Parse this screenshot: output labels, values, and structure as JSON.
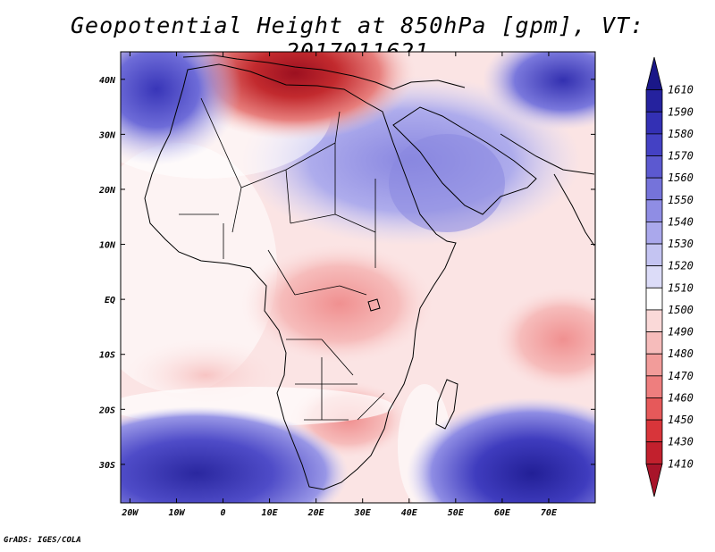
{
  "title": "Geopotential Height at 850hPa [gpm], VT: 2017011621",
  "credit": "GrADS: IGES/COLA",
  "map": {
    "variable": "Geopotential Height",
    "level": "850hPa",
    "units": "gpm",
    "valid_time": "2017011621",
    "lon_range": [
      -22,
      80
    ],
    "lat_range": [
      -37,
      45
    ],
    "lon_tick_labels": [
      "20W",
      "10W",
      "0",
      "10E",
      "20E",
      "30E",
      "40E",
      "50E",
      "60E",
      "70E"
    ],
    "lon_tick_values": [
      -20,
      -10,
      0,
      10,
      20,
      30,
      40,
      50,
      60,
      70
    ],
    "lat_tick_labels": [
      "40N",
      "30N",
      "20N",
      "10N",
      "EQ",
      "10S",
      "20S",
      "30S"
    ],
    "lat_tick_values": [
      40,
      30,
      20,
      10,
      0,
      -10,
      -20,
      -30
    ]
  },
  "colorbar": {
    "labels": [
      "1410",
      "1430",
      "1450",
      "1460",
      "1470",
      "1480",
      "1490",
      "1500",
      "1510",
      "1520",
      "1530",
      "1540",
      "1550",
      "1560",
      "1570",
      "1580",
      "1590",
      "1610"
    ],
    "colors": [
      "#a8142a",
      "#c2202d",
      "#d8353a",
      "#e6595a",
      "#ee7e7e",
      "#f29c9a",
      "#f6bcbb",
      "#fad9d8",
      "#ffffff",
      "#dcdcf8",
      "#c4c4f2",
      "#aaa8ec",
      "#8f8de4",
      "#7573da",
      "#5c59d0",
      "#4441c4",
      "#3330b4",
      "#25229e",
      "#1a1788"
    ]
  }
}
